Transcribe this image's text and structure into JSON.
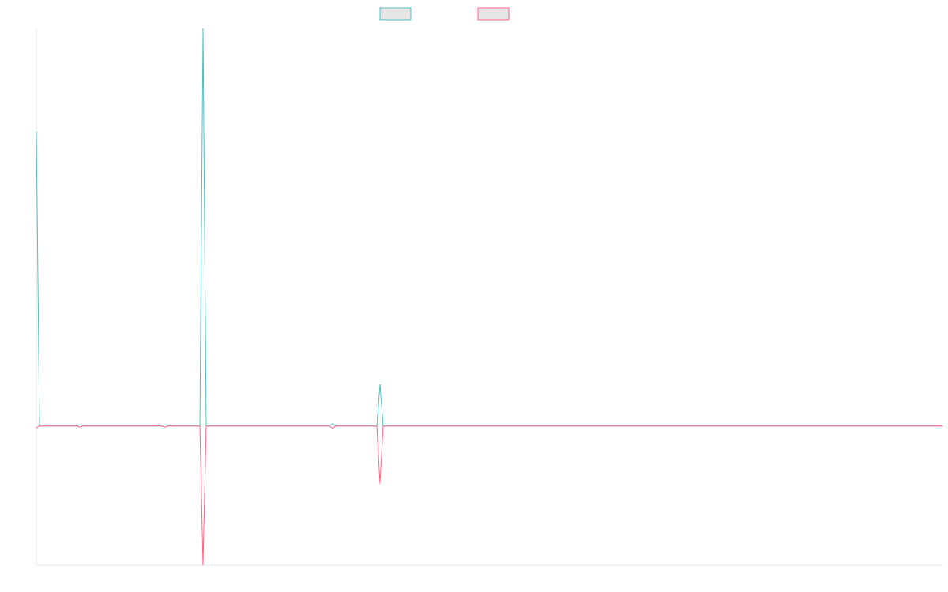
{
  "chart_data": {
    "type": "line",
    "x": [
      0,
      4,
      51,
      55,
      59,
      159,
      163,
      167,
      207,
      211,
      215,
      371,
      375,
      379,
      431,
      435,
      439,
      1147
    ],
    "series": [
      {
        "color": "#4bc0c0",
        "values": [
          74,
          0,
          0,
          0.3,
          0,
          0,
          0.3,
          0,
          0,
          100,
          0,
          0,
          0.6,
          0,
          0,
          10.5,
          0,
          0
        ]
      },
      {
        "color": "#ff6384",
        "values": [
          -0.5,
          0,
          0,
          -0.3,
          0,
          0,
          -0.3,
          0,
          0,
          -35,
          0,
          0,
          -0.6,
          0,
          0,
          -14.5,
          0,
          0
        ]
      }
    ],
    "xlim": [
      0,
      1147
    ],
    "ylim": [
      -35,
      100
    ]
  }
}
